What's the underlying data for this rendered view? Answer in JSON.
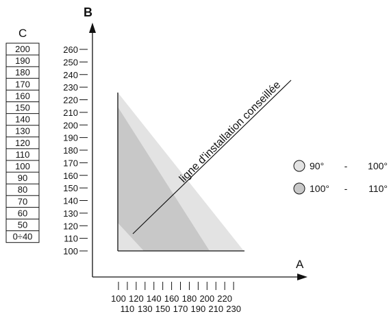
{
  "axes": {
    "a_label": "A",
    "b_label": "B",
    "c_label": "C",
    "a_ticks_row1": [
      "100",
      "120",
      "140",
      "160",
      "180",
      "200",
      "220"
    ],
    "a_ticks_row2": [
      "110",
      "130",
      "150",
      "170",
      "190",
      "210",
      "230"
    ],
    "b_ticks": [
      "260",
      "250",
      "240",
      "230",
      "220",
      "210",
      "200",
      "190",
      "180",
      "170",
      "160",
      "150",
      "140",
      "130",
      "120",
      "110",
      "100"
    ],
    "c_values": [
      "200",
      "190",
      "180",
      "170",
      "160",
      "150",
      "140",
      "130",
      "120",
      "110",
      "100",
      "90",
      "80",
      "70",
      "60",
      "50",
      "0÷40"
    ]
  },
  "diagram_label": "ligne d'installation conseillée",
  "legend": [
    {
      "from": "90°",
      "dash": "-",
      "to": "100°",
      "color": "#e3e3e3"
    },
    {
      "from": "100°",
      "dash": "-",
      "to": "110°",
      "color": "#c8c8c8"
    }
  ]
}
